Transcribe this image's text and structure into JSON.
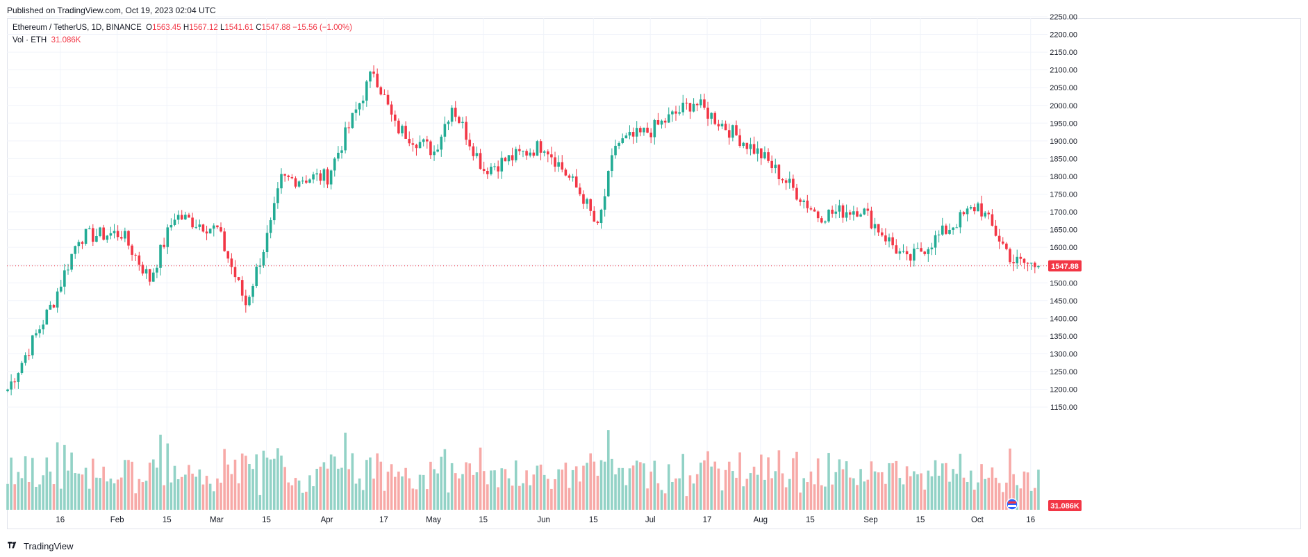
{
  "header": {
    "published": "Published on TradingView.com, Oct 19, 2023 02:04 UTC"
  },
  "legend": {
    "symbol": "Ethereum / TetherUS, 1D, BINANCE",
    "open_label": "O",
    "open": "1563.45",
    "high_label": "H",
    "high": "1567.12",
    "low_label": "L",
    "low": "1541.61",
    "close_label": "C",
    "close": "1547.88",
    "change": "−15.56 (−1.00%)",
    "vol_label": "Vol · ETH",
    "vol_value": "31.086K"
  },
  "footer": {
    "brand": "TradingView"
  },
  "colors": {
    "up": "#22ab94",
    "down": "#f23645",
    "vol_up": "#92d2c6",
    "vol_down": "#f7a9a7",
    "grid": "#f0f3fa",
    "axis_text": "#131722"
  },
  "chart_data": {
    "type": "candlestick",
    "symbol": "Ethereum / TetherUS",
    "interval": "1D",
    "exchange": "BINANCE",
    "last_price_label": "1547.88",
    "last_volume_label": "31.086K",
    "y_ticks": [
      "2250.00",
      "2200.00",
      "2150.00",
      "2100.00",
      "2050.00",
      "2000.00",
      "1950.00",
      "1900.00",
      "1850.00",
      "1800.00",
      "1750.00",
      "1700.00",
      "1650.00",
      "1600.00",
      "1550.00",
      "1500.00",
      "1450.00",
      "1400.00",
      "1350.00",
      "1300.00",
      "1250.00",
      "1200.00",
      "1150.00"
    ],
    "x_ticks": [
      "16",
      "Feb",
      "15",
      "Mar",
      "15",
      "Apr",
      "17",
      "May",
      "15",
      "Jun",
      "15",
      "Jul",
      "17",
      "Aug",
      "15",
      "Sep",
      "15",
      "Oct",
      "16"
    ],
    "ylim": [
      1100,
      2260
    ],
    "key_points": [
      {
        "date": "Jan 1",
        "close": 1200
      },
      {
        "date": "Jan 14",
        "close": 1450
      },
      {
        "date": "Jan 21",
        "close": 1630
      },
      {
        "date": "Feb 2",
        "close": 1640
      },
      {
        "date": "Feb 10",
        "close": 1510
      },
      {
        "date": "Feb 17",
        "close": 1690
      },
      {
        "date": "Mar 1",
        "close": 1650
      },
      {
        "date": "Mar 9",
        "close": 1440
      },
      {
        "date": "Mar 16",
        "close": 1660
      },
      {
        "date": "Mar 19",
        "close": 1790
      },
      {
        "date": "Apr 1",
        "close": 1800
      },
      {
        "date": "Apr 14",
        "close": 2100
      },
      {
        "date": "Apr 20",
        "close": 1940
      },
      {
        "date": "May 1",
        "close": 1870
      },
      {
        "date": "May 6",
        "close": 2000
      },
      {
        "date": "May 15",
        "close": 1820
      },
      {
        "date": "Jun 1",
        "close": 1890
      },
      {
        "date": "Jun 12",
        "close": 1740
      },
      {
        "date": "Jun 16",
        "close": 1650
      },
      {
        "date": "Jun 21",
        "close": 1890
      },
      {
        "date": "Jul 1",
        "close": 1930
      },
      {
        "date": "Jul 13",
        "close": 2010
      },
      {
        "date": "Aug 1",
        "close": 1860
      },
      {
        "date": "Aug 17",
        "close": 1690
      },
      {
        "date": "Aug 29",
        "close": 1710
      },
      {
        "date": "Sep 11",
        "close": 1560
      },
      {
        "date": "Oct 1",
        "close": 1720
      },
      {
        "date": "Oct 11",
        "close": 1560
      },
      {
        "date": "Oct 18",
        "close": 1547.88
      }
    ]
  }
}
